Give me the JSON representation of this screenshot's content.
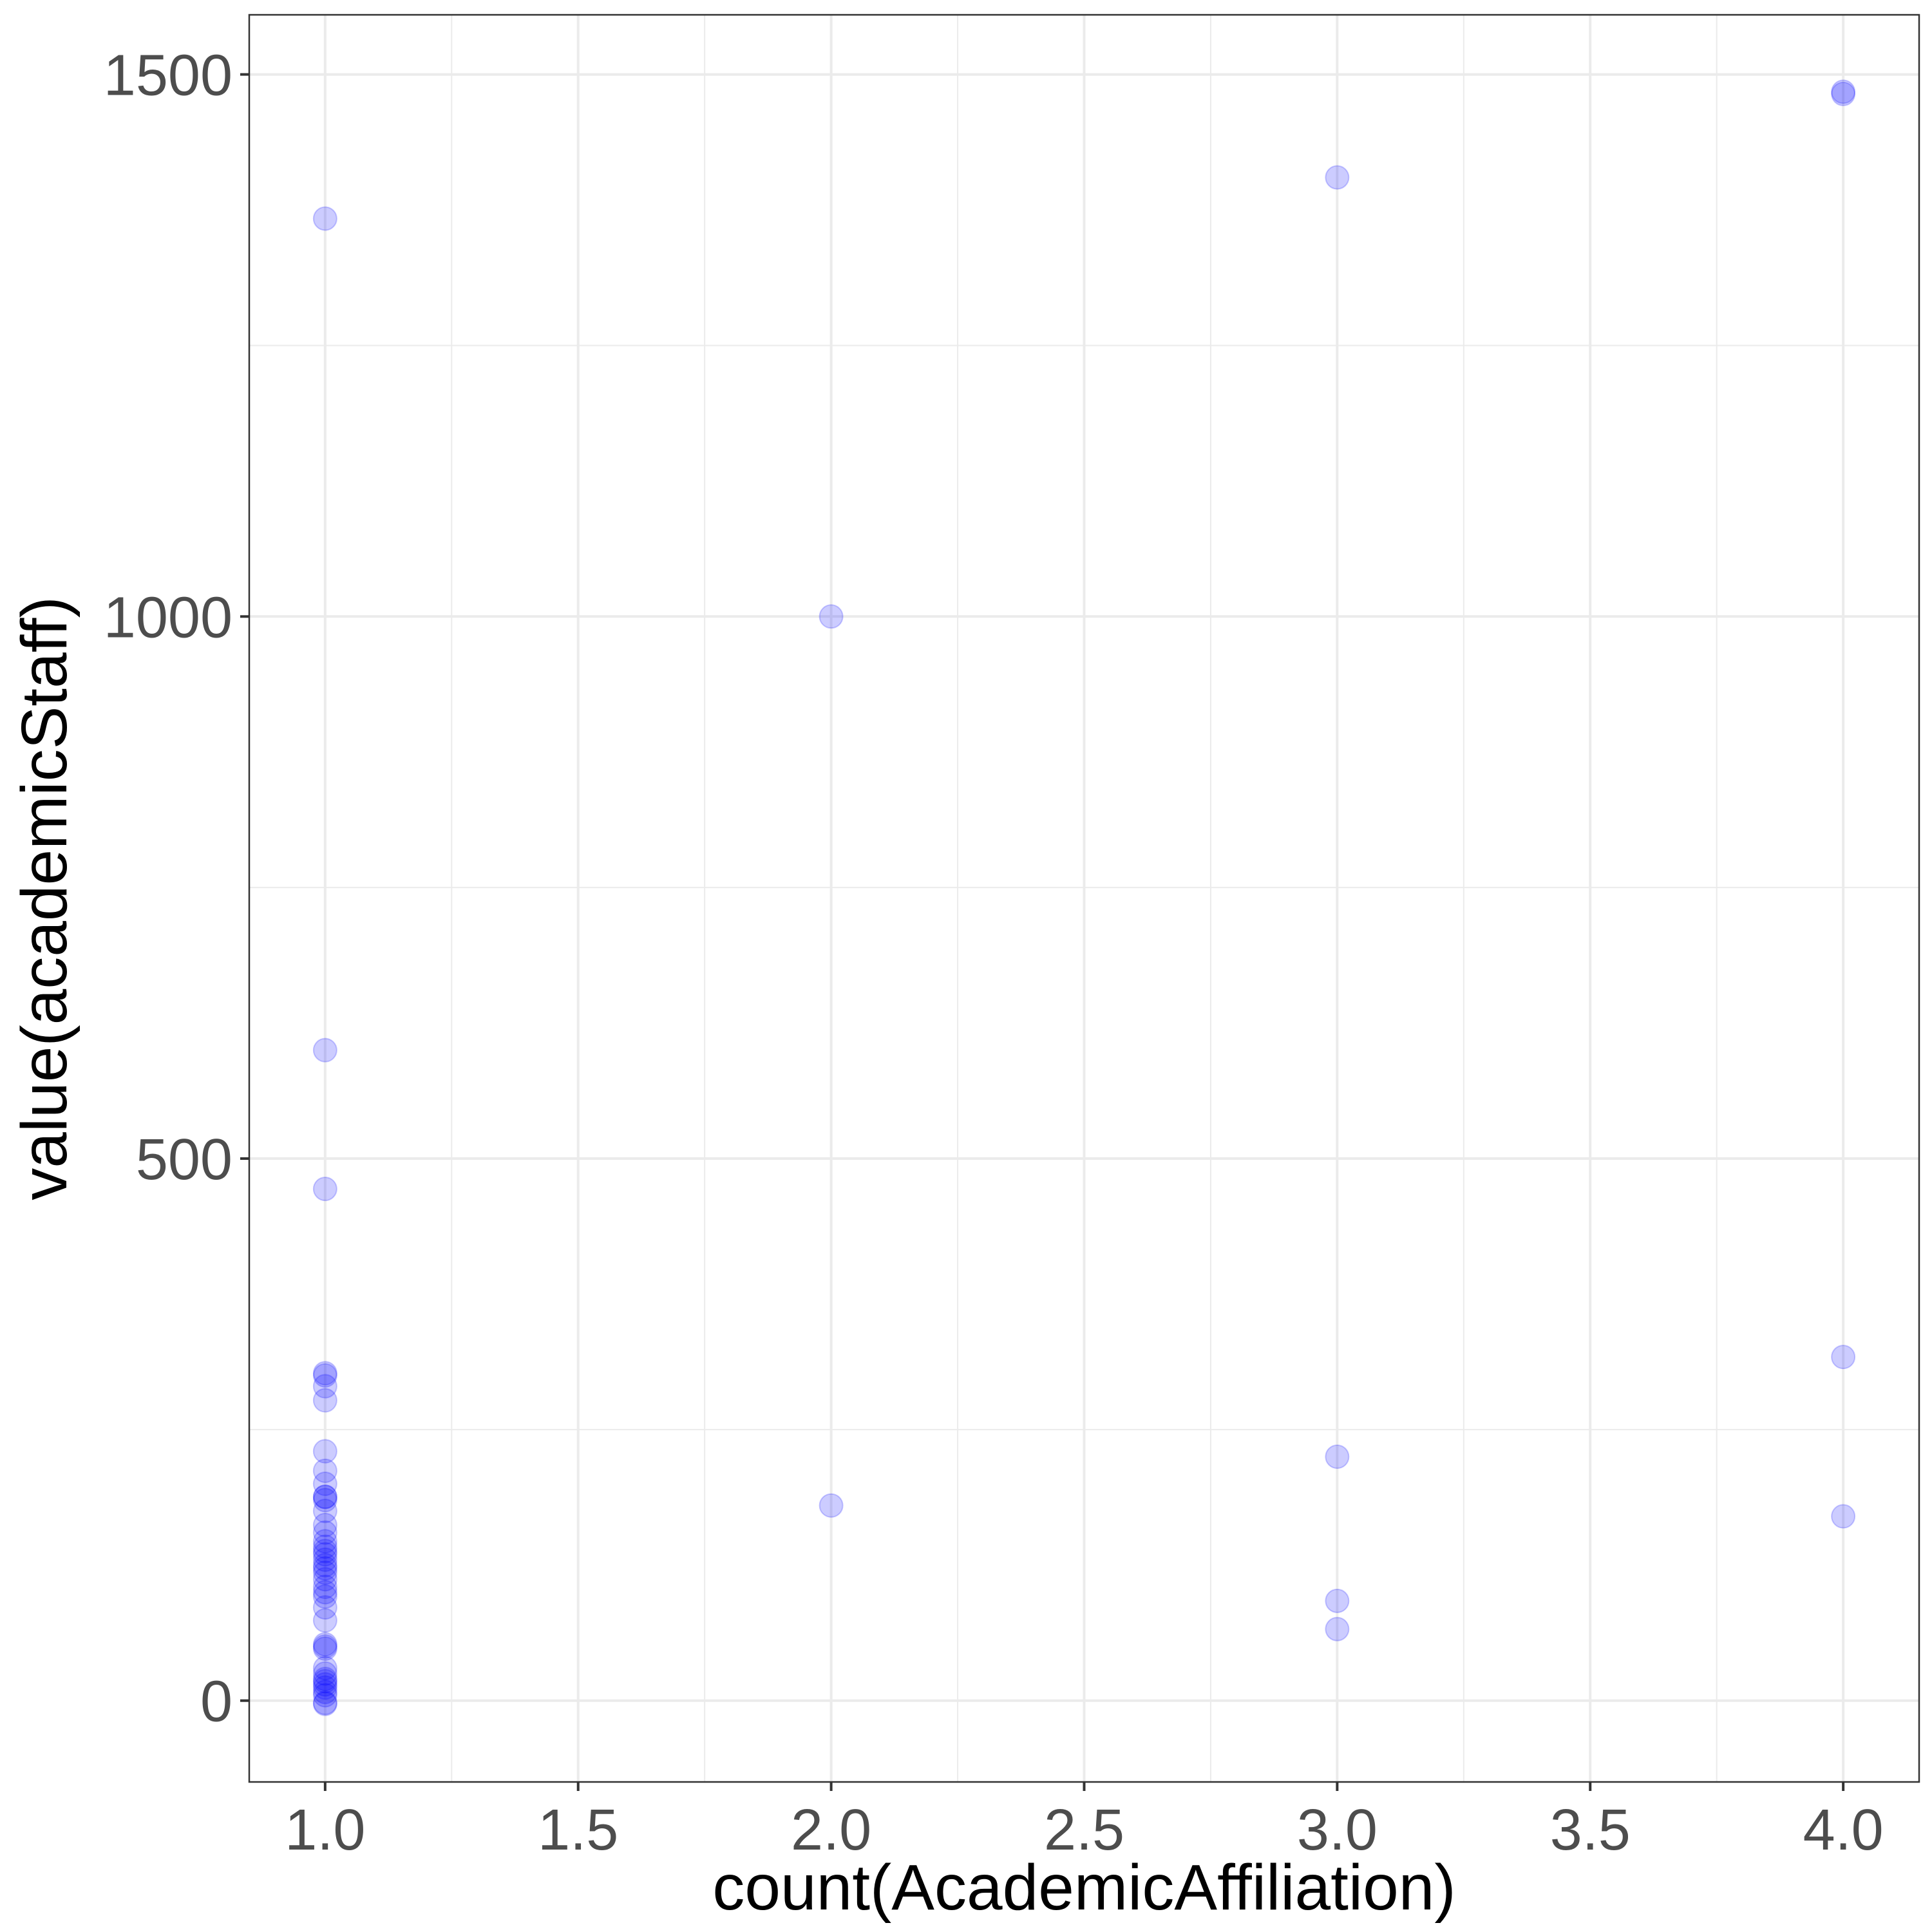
{
  "chart_data": {
    "type": "scatter",
    "title": "",
    "xlabel": "count(AcademicAffiliation)",
    "ylabel": "value(academicStaff)",
    "xlim": [
      0.85,
      4.15
    ],
    "ylim": [
      -75,
      1555
    ],
    "x_ticks": [
      1.0,
      1.5,
      2.0,
      2.5,
      3.0,
      3.5,
      4.0
    ],
    "x_tick_labels": [
      "1.0",
      "1.5",
      "2.0",
      "2.5",
      "3.0",
      "3.5",
      "4.0"
    ],
    "y_ticks": [
      0,
      500,
      1000,
      1500
    ],
    "y_tick_labels": [
      "0",
      "500",
      "1000",
      "1500"
    ],
    "grid": true,
    "point_color": "#0000ff",
    "point_alpha": 0.2,
    "x": [
      1,
      1,
      1,
      1,
      1,
      1,
      1,
      1,
      1,
      1,
      1,
      1,
      1,
      1,
      1,
      1,
      1,
      1,
      1,
      1,
      1,
      1,
      1,
      1,
      1,
      1,
      1,
      1,
      1,
      1,
      1,
      1,
      1,
      1,
      1,
      1,
      1,
      1,
      1,
      1,
      1,
      1,
      1,
      2,
      2,
      3,
      3,
      3,
      3,
      4,
      4,
      4,
      4
    ],
    "y": [
      1367,
      600,
      472,
      302,
      300,
      290,
      277,
      230,
      212,
      200,
      188,
      188,
      185,
      175,
      162,
      155,
      147,
      142,
      138,
      135,
      130,
      125,
      122,
      118,
      112,
      105,
      100,
      96,
      86,
      74,
      52,
      50,
      48,
      30,
      25,
      20,
      18,
      15,
      12,
      8,
      5,
      -2,
      -3,
      1000,
      180,
      1405,
      225,
      92,
      66,
      1484,
      1482,
      317,
      170
    ]
  }
}
